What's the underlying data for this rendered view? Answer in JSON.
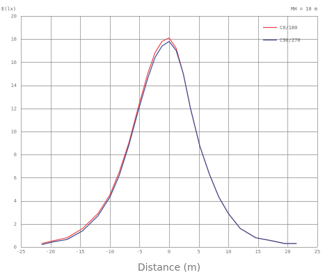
{
  "chart_data": {
    "type": "line",
    "ylabel": "E(lx)",
    "annotation": "MH = 10 m",
    "xlabel": "Distance (m)",
    "xlim": [
      -25,
      25
    ],
    "ylim": [
      0,
      20
    ],
    "xticks": [
      -25,
      -20,
      -15,
      -10,
      -5,
      0,
      5,
      10,
      15,
      20,
      25
    ],
    "yticks": [
      0,
      2,
      4,
      6,
      8,
      10,
      12,
      14,
      16,
      18,
      20
    ],
    "grid": true,
    "legend_position": "top-right",
    "colors": {
      "grid": "#888888",
      "axis_text": "#777777",
      "c0_180": "#e8454b",
      "c90_270": "#3b4b8f"
    },
    "series": [
      {
        "name": "C0/180",
        "color": "#e8454b",
        "x": [
          -21.5,
          -19.5,
          -17.2,
          -14.6,
          -12.0,
          -10.0,
          -8.4,
          -6.8,
          -5.2,
          -3.6,
          -2.4,
          -1.2,
          0,
          1.2,
          2.4,
          3.6,
          5.2,
          6.8,
          8.4,
          10.0,
          12.0,
          14.6,
          17.2,
          19.5,
          21.5
        ],
        "y": [
          0.3,
          0.55,
          0.8,
          1.6,
          2.9,
          4.5,
          6.5,
          9.0,
          12.1,
          15.0,
          16.8,
          17.8,
          18.1,
          17.2,
          15.0,
          12.0,
          8.7,
          6.3,
          4.3,
          2.9,
          1.6,
          0.8,
          0.55,
          0.3,
          0.3
        ]
      },
      {
        "name": "C90/270",
        "color": "#3b4b8f",
        "x": [
          -21.5,
          -19.5,
          -17.2,
          -14.6,
          -12.0,
          -10.0,
          -8.4,
          -6.8,
          -5.2,
          -3.6,
          -2.4,
          -1.2,
          0,
          1.2,
          2.4,
          3.6,
          5.2,
          6.8,
          8.4,
          10.0,
          12.0,
          14.6,
          17.2,
          19.5,
          21.5
        ],
        "y": [
          0.2,
          0.45,
          0.65,
          1.4,
          2.7,
          4.3,
          6.2,
          8.8,
          11.8,
          14.6,
          16.4,
          17.4,
          17.8,
          17.0,
          15.0,
          12.0,
          8.7,
          6.3,
          4.3,
          2.9,
          1.6,
          0.8,
          0.55,
          0.3,
          0.3
        ]
      }
    ]
  }
}
